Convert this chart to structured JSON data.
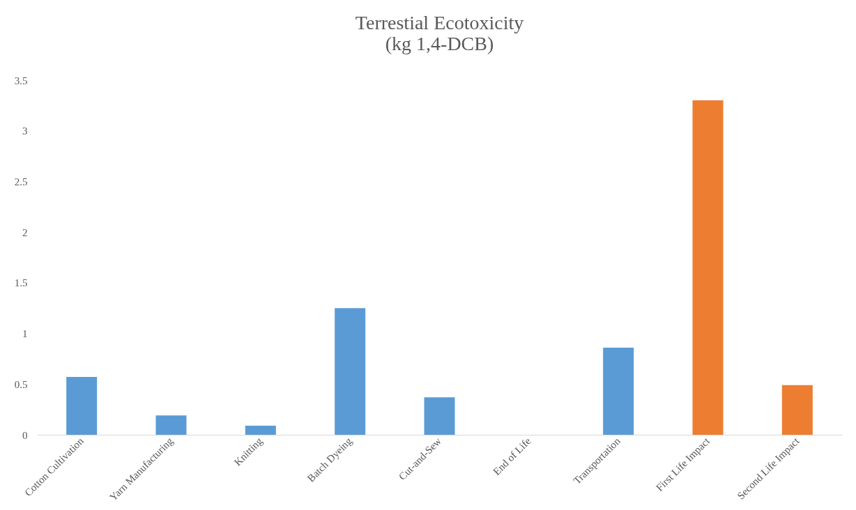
{
  "chart_data": {
    "type": "bar",
    "title": [
      "Terrestial  Ecotoxicity",
      "(kg 1,4-DCB)"
    ],
    "categories": [
      "Cotton Cultivation",
      "Yarn Manufacturing",
      "Knitting",
      "Batch Dyeing",
      "Cut-and-Sew",
      "End of Life",
      "Transportation",
      "First Life Impact",
      "Second Life Impact"
    ],
    "values": [
      0.57,
      0.19,
      0.09,
      1.25,
      0.37,
      0,
      0.86,
      3.3,
      0.49
    ],
    "colors": [
      "#5b9bd5",
      "#5b9bd5",
      "#5b9bd5",
      "#5b9bd5",
      "#5b9bd5",
      "#5b9bd5",
      "#5b9bd5",
      "#ed7d31",
      "#ed7d31"
    ],
    "ylim": [
      0,
      3.5
    ],
    "yticks": [
      0,
      0.5,
      1,
      1.5,
      2,
      2.5,
      3,
      3.5
    ],
    "grid": false,
    "legend": false
  }
}
